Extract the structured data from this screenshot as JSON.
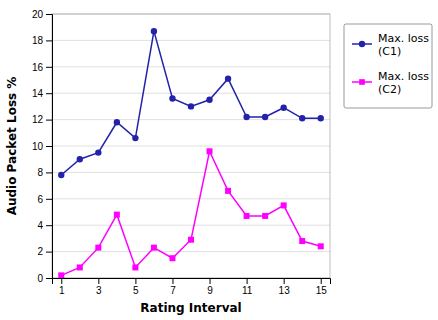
{
  "chart_data": {
    "type": "line",
    "x": [
      1,
      2,
      3,
      4,
      5,
      6,
      7,
      8,
      9,
      10,
      11,
      12,
      13,
      14,
      15
    ],
    "series": [
      {
        "name": "Max. loss\n(C1)",
        "color": "#2222AA",
        "marker": "circle",
        "values": [
          7.8,
          9.0,
          9.5,
          11.8,
          10.6,
          18.7,
          13.6,
          13.0,
          13.5,
          15.1,
          12.2,
          12.2,
          12.9,
          12.1,
          12.1
        ]
      },
      {
        "name": "Max. loss\n(C2)",
        "color": "#FF00FF",
        "marker": "square",
        "values": [
          0.2,
          0.8,
          2.3,
          4.8,
          0.8,
          2.3,
          1.5,
          2.9,
          9.6,
          6.6,
          4.7,
          4.7,
          5.5,
          2.8,
          2.4
        ]
      }
    ],
    "xlabel": "Rating Interval",
    "ylabel": "Audio Packet Loss %",
    "xlim": [
      0.5,
      15.5
    ],
    "ylim": [
      0,
      20
    ],
    "xticks": [
      1,
      3,
      5,
      7,
      9,
      11,
      13,
      15
    ],
    "yticks": [
      0,
      2,
      4,
      6,
      8,
      10,
      12,
      14,
      16,
      18,
      20
    ],
    "grid": "y",
    "legend": "right"
  }
}
